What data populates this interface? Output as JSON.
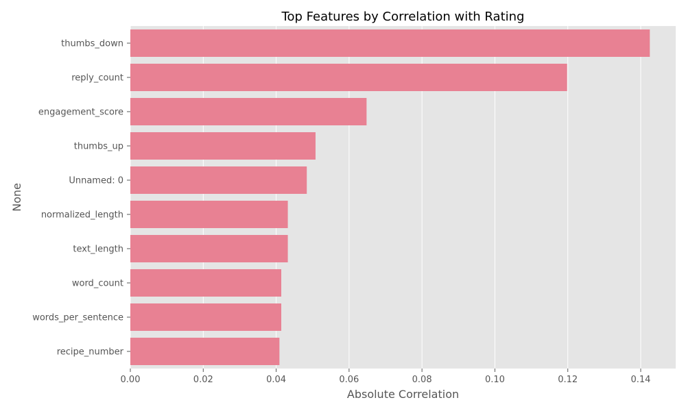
{
  "chart_data": {
    "type": "bar",
    "orientation": "horizontal",
    "title": "Top Features by Correlation with Rating",
    "xlabel": "Absolute Correlation",
    "ylabel": "None",
    "categories": [
      "thumbs_down",
      "reply_count",
      "engagement_score",
      "thumbs_up",
      "Unnamed: 0",
      "normalized_length",
      "text_length",
      "word_count",
      "words_per_sentence",
      "recipe_number"
    ],
    "values": [
      0.1425,
      0.1198,
      0.0648,
      0.0508,
      0.0484,
      0.0432,
      0.0432,
      0.0414,
      0.0414,
      0.0409
    ],
    "xlim": [
      0,
      0.1496
    ],
    "xticks": [
      0.0,
      0.02,
      0.04,
      0.06,
      0.08,
      0.1,
      0.12,
      0.14
    ],
    "xtick_labels": [
      "0.00",
      "0.02",
      "0.04",
      "0.06",
      "0.08",
      "0.10",
      "0.12",
      "0.14"
    ],
    "grid": true,
    "colors": {
      "bar": "#E88193",
      "background": "#E5E5E5",
      "grid": "#FFFFFF"
    }
  }
}
